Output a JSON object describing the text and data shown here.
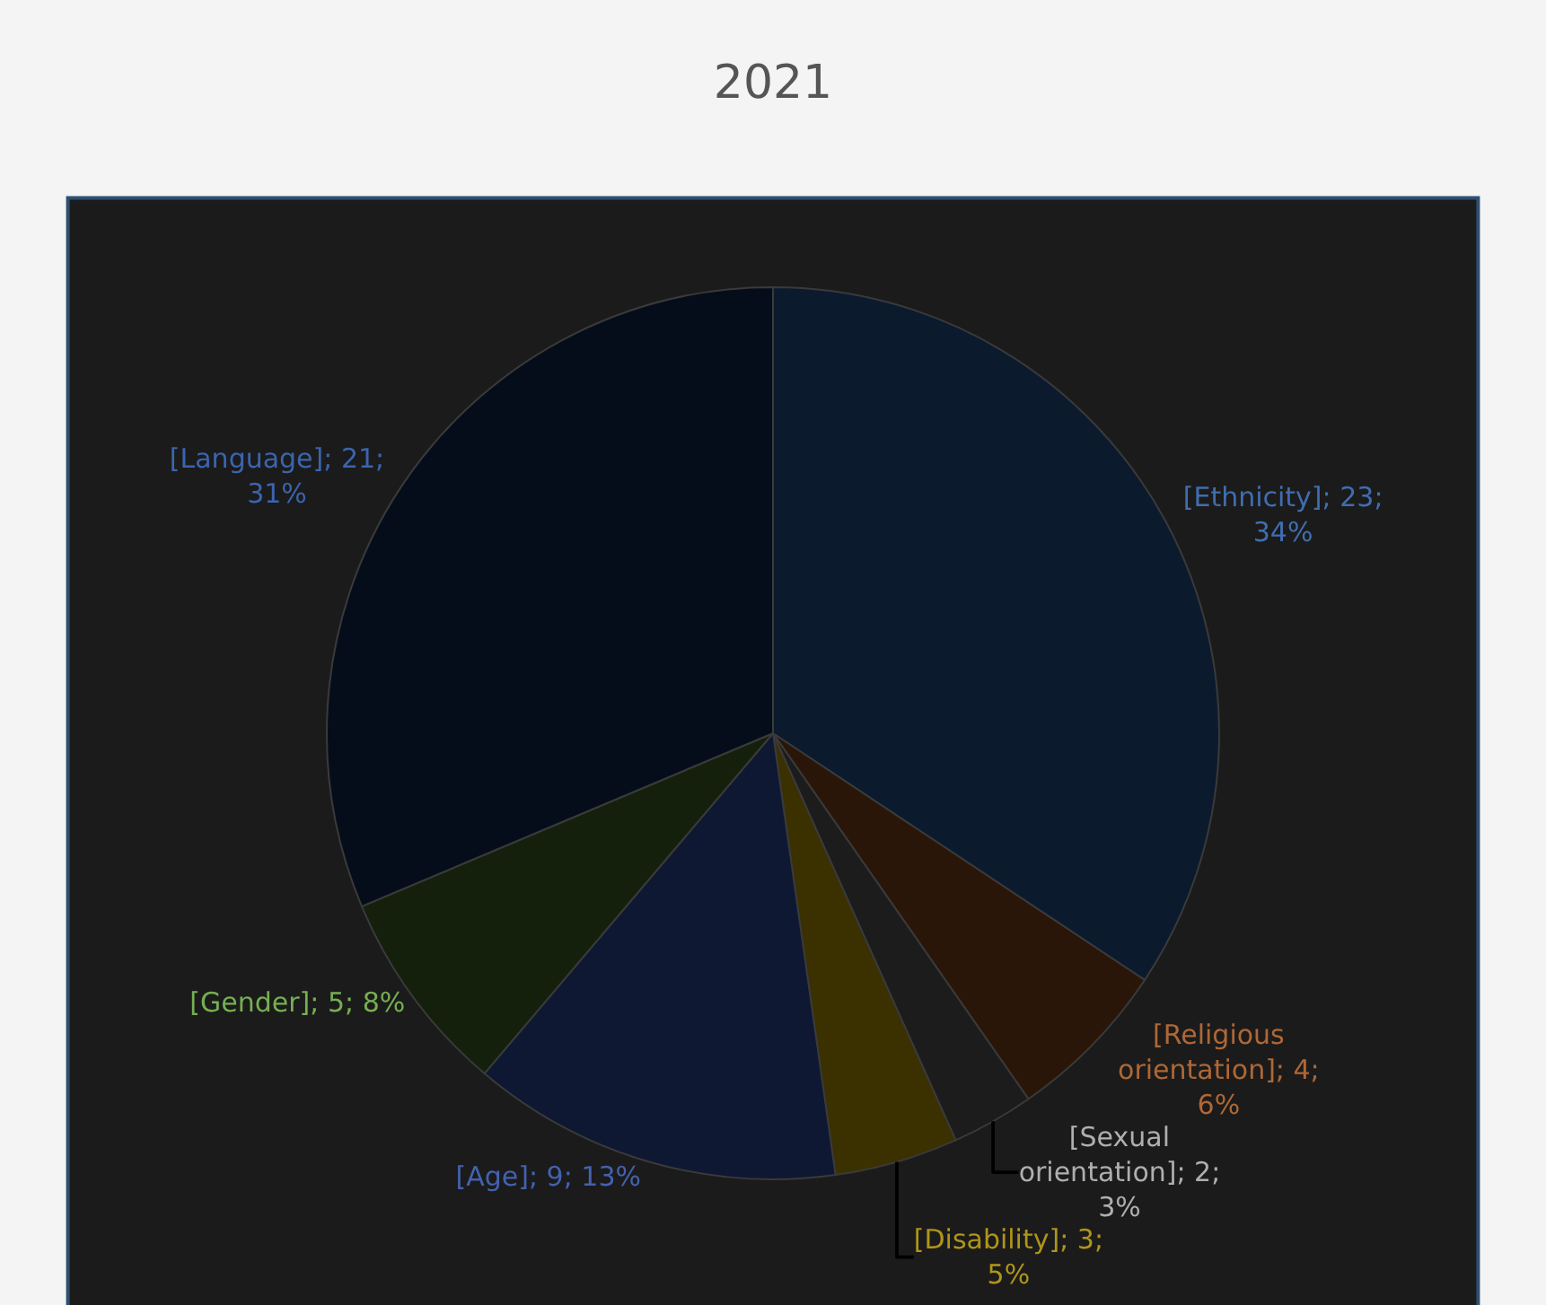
{
  "chart_data": {
    "type": "pie",
    "title": "2021",
    "categories": [
      "[Ethnicity]",
      "[Religious orientation]",
      "[Sexual orientation]",
      "[Disability]",
      "[Age]",
      "[Gender]",
      "[Language]"
    ],
    "values": [
      23,
      4,
      2,
      3,
      9,
      5,
      21
    ],
    "colors": [
      "#0c1a2e",
      "#2a1608",
      "#1c1c1c",
      "#3a3000",
      "#0e1832",
      "#14200c",
      "#060d1a"
    ],
    "value_labels": [
      "23; 34%",
      "4; 6%",
      "2; 3%",
      "3; 5%",
      "9; 13%",
      "5; 8%",
      "21; 31%"
    ],
    "legend": false
  }
}
